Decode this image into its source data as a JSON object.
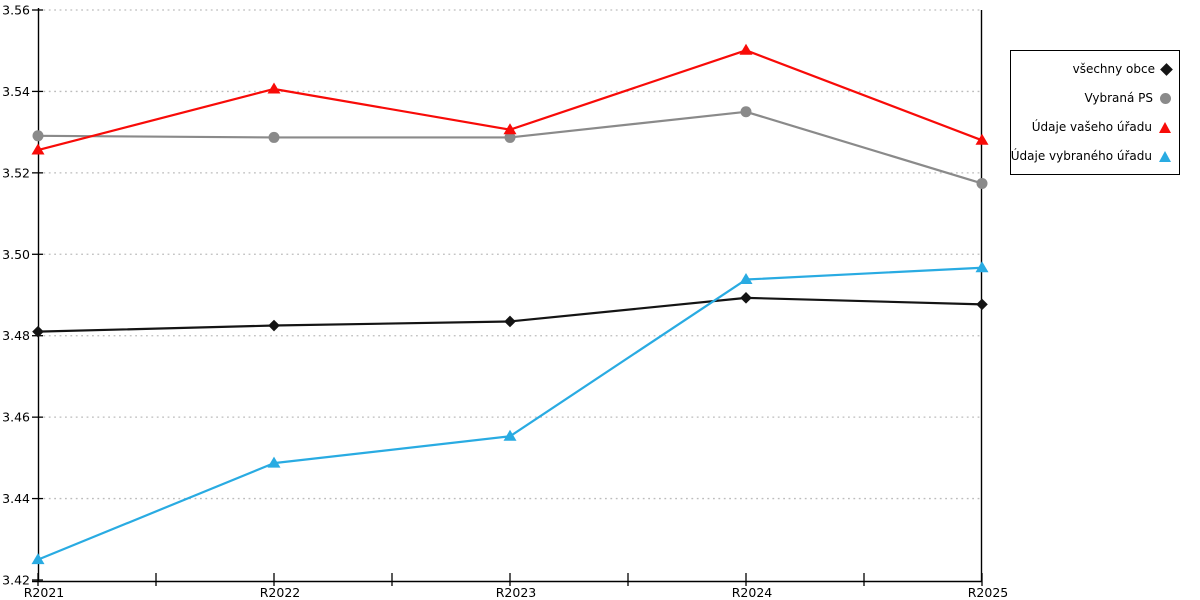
{
  "chart_data": {
    "type": "line",
    "title": "",
    "xlabel": "",
    "ylabel": "",
    "categories": [
      "R2021",
      "R2022",
      "R2023",
      "R2024",
      "R2025"
    ],
    "series": [
      {
        "name": "všechny obce",
        "marker": "diamond",
        "color": "#141414",
        "values": [
          3.481,
          3.4825,
          3.4835,
          3.4893,
          3.4877
        ]
      },
      {
        "name": "Vybraná PS",
        "marker": "circle",
        "color": "#8a8a8a",
        "values": [
          3.5291,
          3.5287,
          3.5287,
          3.535,
          3.5174
        ]
      },
      {
        "name": "Údaje vašeho úřadu",
        "marker": "triangle",
        "color": "#f80b08",
        "values": [
          3.5256,
          3.5406,
          3.5306,
          3.5501,
          3.528
        ]
      },
      {
        "name": "Údaje vybraného úřadu",
        "marker": "triangle",
        "color": "#29abe2",
        "values": [
          3.425,
          3.4487,
          3.4553,
          3.4938,
          3.4967
        ]
      }
    ],
    "ylim": [
      3.42,
      3.56
    ],
    "ytick_step": 0.02,
    "ytick_labels": [
      "3.42",
      "3.44",
      "3.46",
      "3.48",
      "3.50",
      "3.52",
      "3.54",
      "3.56"
    ],
    "grid": "horizontal-dotted",
    "gridline_color": "#bcbcbc",
    "axis_color": "#000000",
    "legend_position": "right",
    "legend_items": [
      "všechny obce",
      "Vybraná PS",
      "Údaje vašeho úřadu",
      "Údaje vybraného úřadu"
    ]
  }
}
